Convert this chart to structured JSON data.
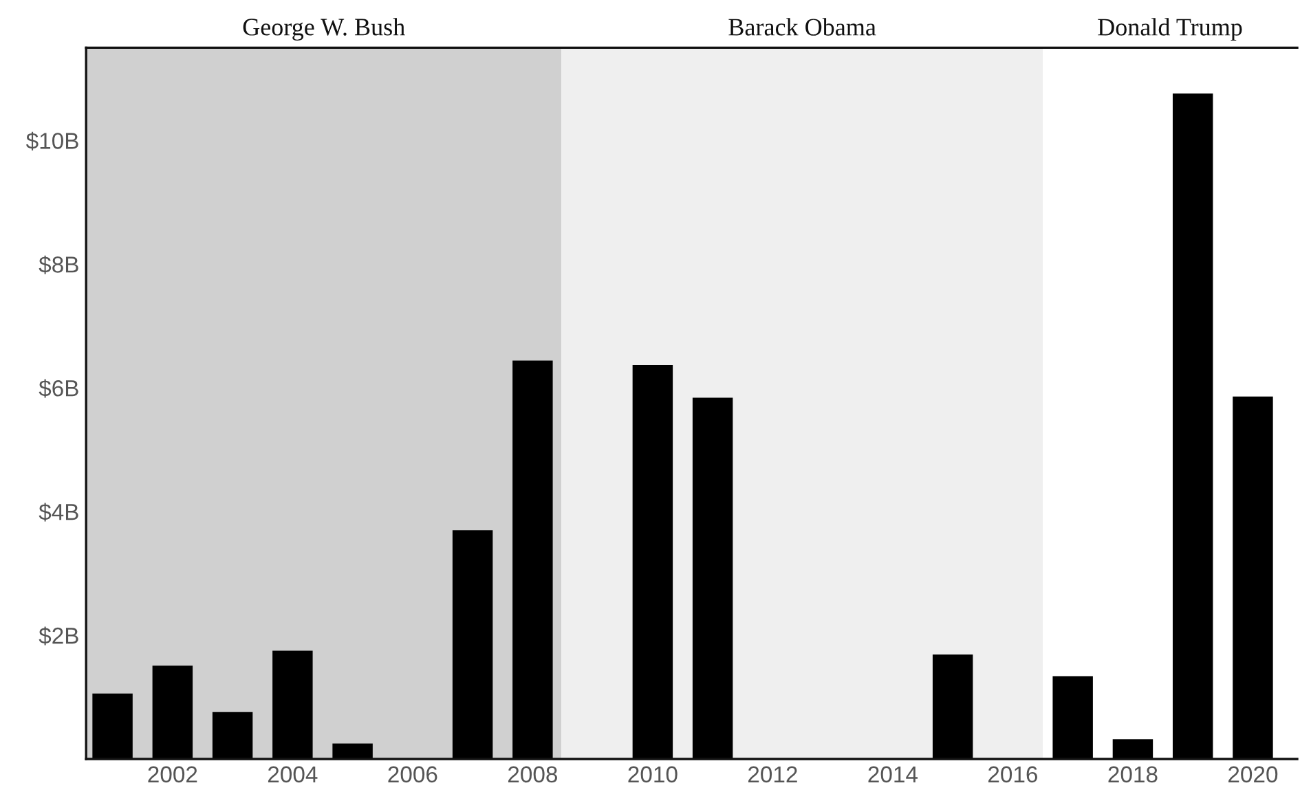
{
  "chart_data": {
    "type": "bar",
    "x": [
      2001,
      2002,
      2003,
      2004,
      2005,
      2006,
      2007,
      2008,
      2009,
      2010,
      2011,
      2012,
      2013,
      2014,
      2015,
      2016,
      2017,
      2018,
      2019,
      2020
    ],
    "series": [
      {
        "color": "#000000",
        "values": [
          1.06,
          1.51,
          0.76,
          1.75,
          0.25,
          null,
          3.7,
          6.44,
          null,
          6.37,
          5.84,
          null,
          null,
          null,
          1.69,
          null,
          1.34,
          0.32,
          10.76,
          5.86
        ]
      }
    ],
    "xlim": [
      2000.56,
      2020.74
    ],
    "xticks": [
      2002,
      2004,
      2006,
      2008,
      2010,
      2012,
      2014,
      2016,
      2018,
      2020
    ],
    "ylim": [
      0,
      11.5
    ],
    "yticks": [
      {
        "value": 2,
        "label": "$2B"
      },
      {
        "value": 4,
        "label": "$4B"
      },
      {
        "value": 6,
        "label": "$6B"
      },
      {
        "value": 8,
        "label": "$8B"
      },
      {
        "value": 10,
        "label": "$10B"
      }
    ],
    "bands": [
      {
        "axis": "x",
        "from": 2000.56,
        "to": 2008.48,
        "label": "George W. Bush",
        "color": "#d0d0d0"
      },
      {
        "axis": "x",
        "from": 2008.48,
        "to": 2016.5,
        "label": "Barack Obama",
        "color": "#efefef"
      }
    ],
    "annotations": [
      "Donald Trump"
    ],
    "grid": false
  }
}
